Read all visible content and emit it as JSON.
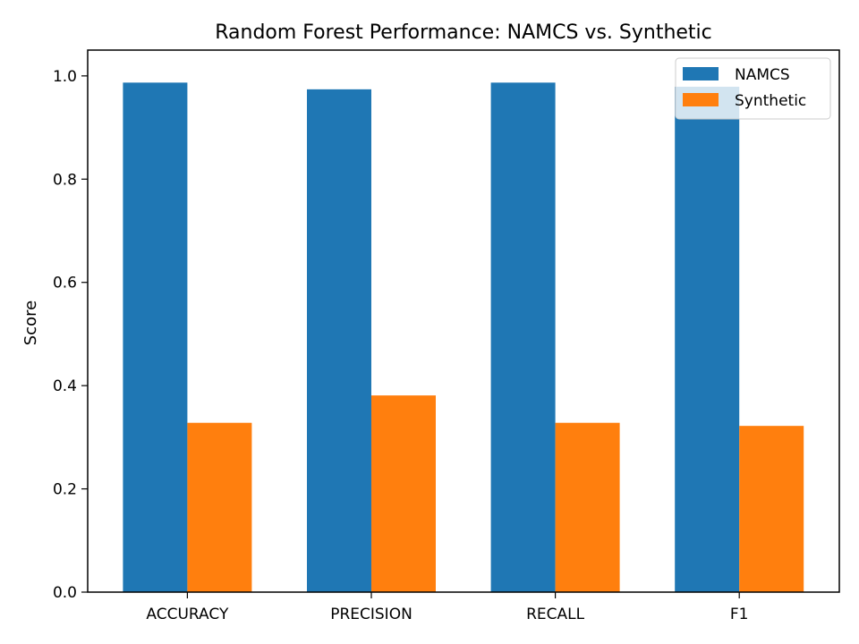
{
  "chart_data": {
    "type": "bar",
    "title": "Random Forest Performance: NAMCS vs. Synthetic",
    "xlabel": "",
    "ylabel": "Score",
    "categories": [
      "ACCURACY",
      "PRECISION",
      "RECALL",
      "F1"
    ],
    "series": [
      {
        "name": "NAMCS",
        "color": "#1f77b4",
        "values": [
          0.987,
          0.974,
          0.987,
          0.979
        ]
      },
      {
        "name": "Synthetic",
        "color": "#ff7f0e",
        "values": [
          0.328,
          0.381,
          0.328,
          0.322
        ]
      }
    ],
    "ylim": [
      0,
      1.05
    ],
    "yticks": [
      0.0,
      0.2,
      0.4,
      0.6,
      0.8,
      1.0
    ],
    "ytick_labels": [
      "0.0",
      "0.2",
      "0.4",
      "0.6",
      "0.8",
      "1.0"
    ],
    "grid": false,
    "legend": "top-right"
  }
}
